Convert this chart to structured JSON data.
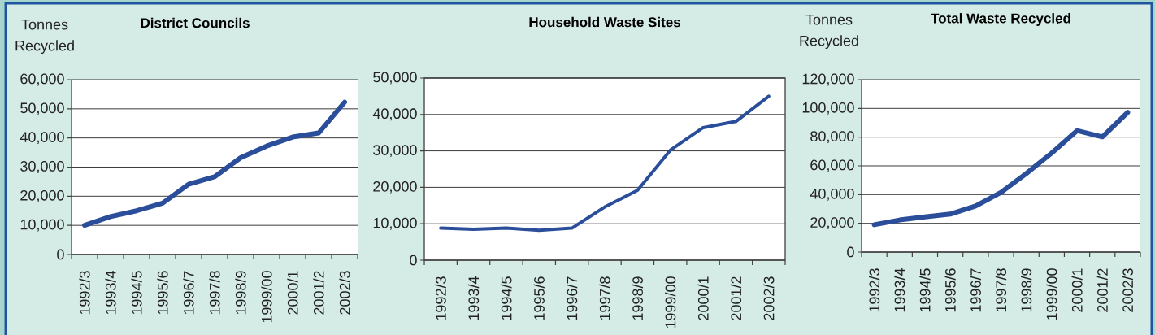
{
  "chart_data": [
    {
      "type": "line",
      "title": "District Councils",
      "ylabel": "Tonnes Recycled",
      "categories": [
        "1992/3",
        "1993/4",
        "1994/5",
        "1995/6",
        "1996/7",
        "1997/8",
        "1998/9",
        "1999/00",
        "2000/1",
        "2001/2",
        "2002/3"
      ],
      "values": [
        10000,
        13000,
        15000,
        17600,
        24100,
        26700,
        33200,
        37200,
        40300,
        41700,
        52300
      ],
      "color": "#2b4e9b",
      "ylim": [
        0,
        60000
      ],
      "yticks": [
        0,
        {
          "value": 10000,
          "label": "10,000"
        },
        {
          "value": 20000,
          "label": "20,000"
        },
        {
          "value": 30000,
          "label": "30,000"
        },
        {
          "value": 40000,
          "label": "40,000"
        },
        {
          "value": 50000,
          "label": "50,000"
        },
        {
          "value": 60000,
          "label": "60,000"
        }
      ],
      "grid": "y"
    },
    {
      "type": "line",
      "title": "Household Waste Sites",
      "categories": [
        "1992/3",
        "1993/4",
        "1994/5",
        "1995/6",
        "1996/7",
        "1997/8",
        "1998/9",
        "1999/00",
        "2000/1",
        "2001/2",
        "2002/3"
      ],
      "values": [
        8800,
        8500,
        8800,
        8200,
        8800,
        14600,
        19200,
        30200,
        36400,
        38100,
        45000
      ],
      "color": "#2b4e9b",
      "ylim": [
        0,
        50000
      ],
      "yticks": [
        0,
        {
          "value": 10000,
          "label": "10,000"
        },
        {
          "value": 20000,
          "label": "20,000"
        },
        {
          "value": 30000,
          "label": "30,000"
        },
        {
          "value": 40000,
          "label": "40,000"
        },
        {
          "value": 50000,
          "label": "50,000"
        }
      ],
      "grid": "y"
    },
    {
      "type": "line",
      "title": "Total Waste Recycled",
      "ylabel": "Tonnes Recycled",
      "categories": [
        "1992/3",
        "1993/4",
        "1994/5",
        "1995/6",
        "1996/7",
        "1997/8",
        "1998/9",
        "1999/00",
        "2000/1",
        "2001/2",
        "2002/3"
      ],
      "values": [
        19000,
        22300,
        24500,
        26400,
        32100,
        41500,
        54700,
        68900,
        84500,
        80200,
        97200
      ],
      "color": "#2b4e9b",
      "ylim": [
        0,
        120000
      ],
      "yticks": [
        0,
        {
          "value": 20000,
          "label": "20,000"
        },
        {
          "value": 40000,
          "label": "40,000"
        },
        {
          "value": 60000,
          "label": "60,000"
        },
        {
          "value": 80000,
          "label": "80,000"
        },
        {
          "value": 100000,
          "label": "100,000"
        },
        {
          "value": 120000,
          "label": "120,000"
        }
      ],
      "grid": "y"
    }
  ]
}
